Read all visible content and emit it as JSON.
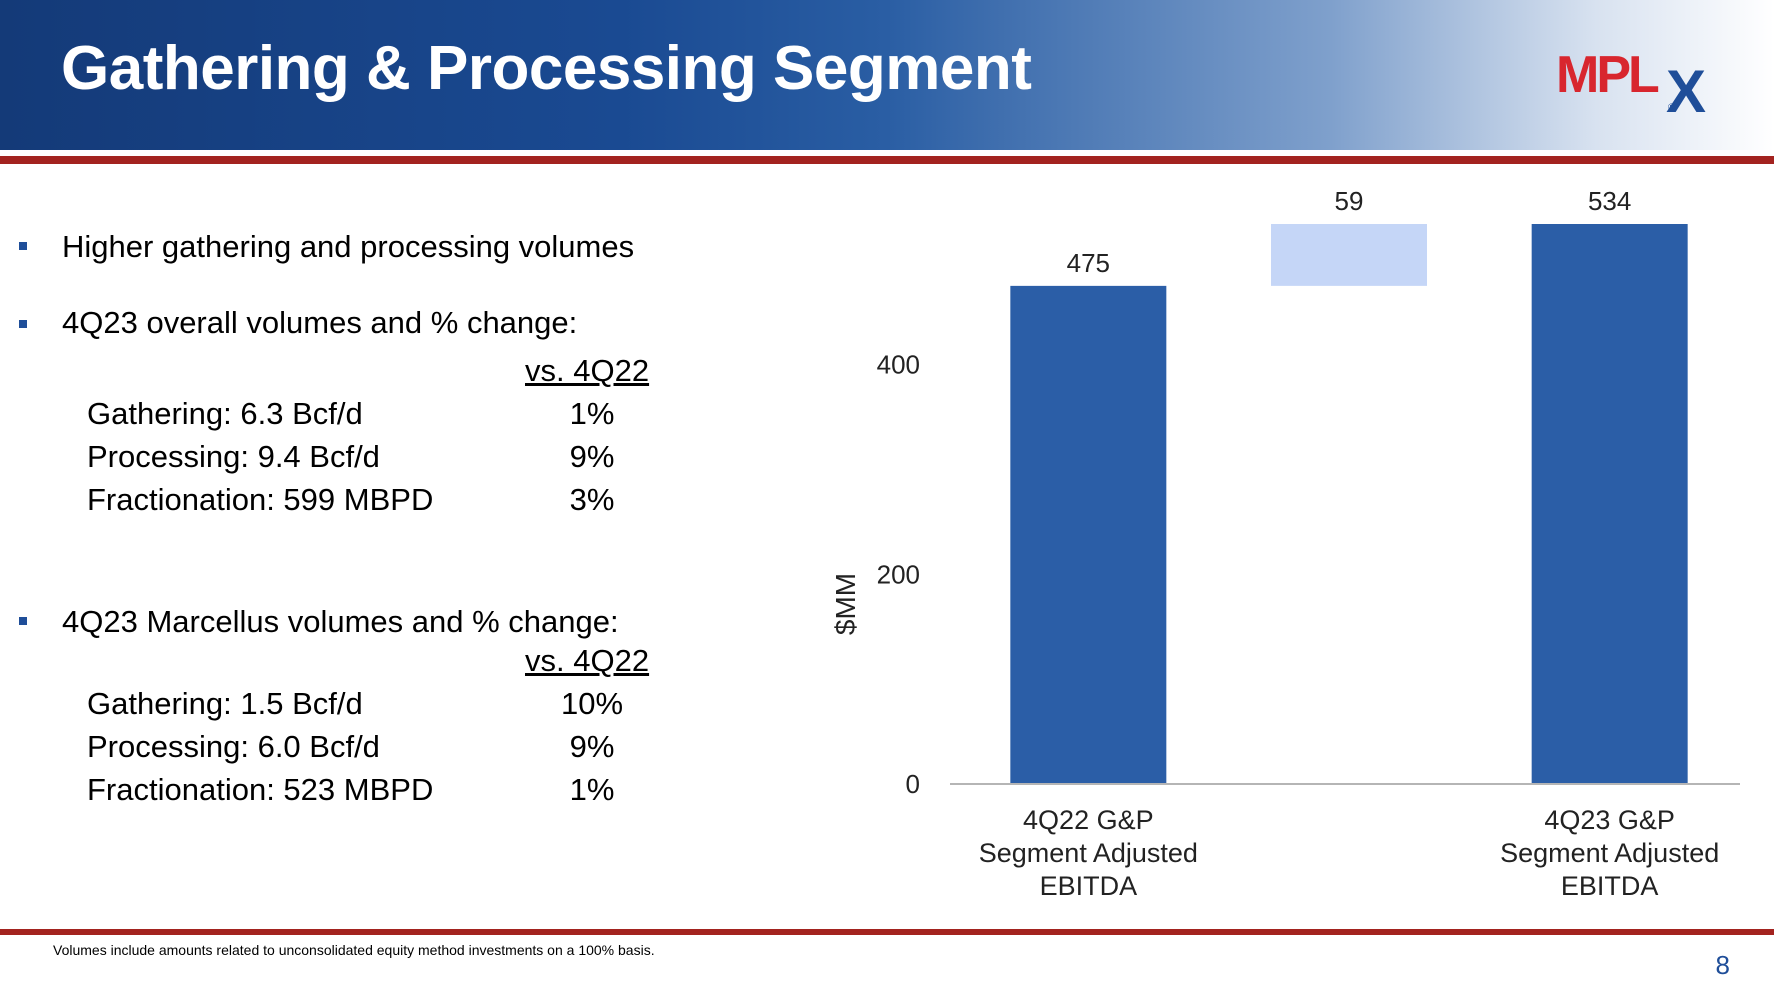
{
  "title": "Gathering & Processing Segment",
  "logo_text": "MPLX",
  "bullets": [
    "Higher gathering and processing volumes",
    "4Q23 overall volumes and % change:",
    "4Q23 Marcellus volumes and % change:"
  ],
  "overall": {
    "header": "vs. 4Q22",
    "rows": [
      {
        "label": "Gathering: 6.3 Bcf/d",
        "value": "1%"
      },
      {
        "label": "Processing: 9.4 Bcf/d",
        "value": "9%"
      },
      {
        "label": "Fractionation: 599 MBPD",
        "value": "3%"
      }
    ]
  },
  "marcellus": {
    "header": "vs. 4Q22",
    "rows": [
      {
        "label": "Gathering: 1.5 Bcf/d",
        "value": "10%"
      },
      {
        "label": "Processing: 6.0 Bcf/d",
        "value": "9%"
      },
      {
        "label": "Fractionation: 523 MBPD",
        "value": "1%"
      }
    ]
  },
  "chart_data": {
    "type": "bar",
    "subtype": "waterfall",
    "categories": [
      "4Q22 G&P Segment Adjusted EBITDA",
      "",
      "4Q23 G&P Segment Adjusted EBITDA"
    ],
    "category_lines": [
      [
        "4Q22 G&P",
        "Segment Adjusted",
        "EBITDA"
      ],
      [],
      [
        "4Q23 G&P",
        "Segment Adjusted",
        "EBITDA"
      ]
    ],
    "bars": [
      {
        "kind": "total",
        "value": 475,
        "label": "475",
        "color": "#2b5ea7"
      },
      {
        "kind": "delta",
        "base": 475,
        "value": 59,
        "label": "59",
        "color": "#c5d6f7"
      },
      {
        "kind": "total",
        "value": 534,
        "label": "534",
        "color": "#2b5ea7"
      }
    ],
    "ylabel": "$MM",
    "yticks": [
      0,
      200,
      400
    ],
    "ylim": [
      0,
      534
    ],
    "grid": false
  },
  "footnote": "Volumes include amounts related to unconsolidated equity method investments on a 100% basis.",
  "page_number": "8"
}
